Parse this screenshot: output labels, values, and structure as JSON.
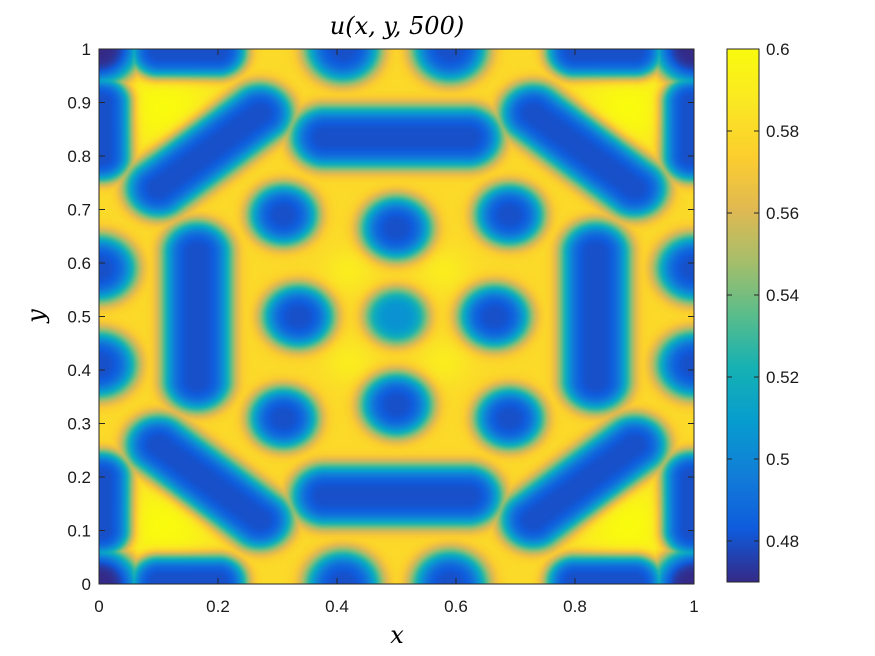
{
  "chart_data": {
    "type": "heatmap",
    "title": "u(x, y, 500)",
    "xlabel": "x",
    "ylabel": "y",
    "xlim": [
      0,
      1
    ],
    "ylim": [
      0,
      1
    ],
    "x_ticks": [
      "0",
      "0.2",
      "0.4",
      "0.6",
      "0.8",
      "1"
    ],
    "y_ticks": [
      "0",
      "0.1",
      "0.2",
      "0.3",
      "0.4",
      "0.5",
      "0.6",
      "0.7",
      "0.8",
      "0.9",
      "1"
    ],
    "colorbar": {
      "colormap": "parula",
      "range": [
        0.47,
        0.6
      ],
      "ticks": [
        "0.48",
        "0.5",
        "0.52",
        "0.54",
        "0.56",
        "0.58",
        "0.6"
      ]
    },
    "background_value": 0.58,
    "low_value": 0.48,
    "high_value": 0.6,
    "pattern": {
      "spots": [
        {
          "x": 0.5,
          "y": 0.5,
          "r": 0.055,
          "min": 0.505
        },
        {
          "x": 0.335,
          "y": 0.5,
          "r": 0.062,
          "min": 0.48
        },
        {
          "x": 0.665,
          "y": 0.5,
          "r": 0.062,
          "min": 0.48
        },
        {
          "x": 0.5,
          "y": 0.665,
          "r": 0.062,
          "min": 0.48
        },
        {
          "x": 0.5,
          "y": 0.335,
          "r": 0.062,
          "min": 0.48
        },
        {
          "x": 0.31,
          "y": 0.69,
          "r": 0.06,
          "min": 0.48
        },
        {
          "x": 0.69,
          "y": 0.69,
          "r": 0.06,
          "min": 0.48
        },
        {
          "x": 0.31,
          "y": 0.31,
          "r": 0.06,
          "min": 0.48
        },
        {
          "x": 0.69,
          "y": 0.31,
          "r": 0.06,
          "min": 0.48
        },
        {
          "x": 0.41,
          "y": 1.0,
          "r": 0.065,
          "min": 0.48
        },
        {
          "x": 0.59,
          "y": 1.0,
          "r": 0.065,
          "min": 0.48
        },
        {
          "x": 0.41,
          "y": 0.0,
          "r": 0.065,
          "min": 0.48
        },
        {
          "x": 0.59,
          "y": 0.0,
          "r": 0.065,
          "min": 0.48
        },
        {
          "x": 0.0,
          "y": 0.41,
          "r": 0.065,
          "min": 0.48
        },
        {
          "x": 0.0,
          "y": 0.59,
          "r": 0.065,
          "min": 0.48
        },
        {
          "x": 1.0,
          "y": 0.41,
          "r": 0.065,
          "min": 0.48
        },
        {
          "x": 1.0,
          "y": 0.59,
          "r": 0.065,
          "min": 0.48
        },
        {
          "x": 0.0,
          "y": 1.0,
          "r": 0.07,
          "min": 0.47
        },
        {
          "x": 1.0,
          "y": 1.0,
          "r": 0.07,
          "min": 0.47
        },
        {
          "x": 0.0,
          "y": 0.0,
          "r": 0.07,
          "min": 0.47
        },
        {
          "x": 1.0,
          "y": 0.0,
          "r": 0.07,
          "min": 0.47
        }
      ],
      "stripes": [
        {
          "x1": 0.38,
          "y1": 0.835,
          "x2": 0.62,
          "y2": 0.835,
          "r": 0.06,
          "min": 0.48
        },
        {
          "x1": 0.38,
          "y1": 0.165,
          "x2": 0.62,
          "y2": 0.165,
          "r": 0.06,
          "min": 0.48
        },
        {
          "x1": 0.165,
          "y1": 0.38,
          "x2": 0.165,
          "y2": 0.62,
          "r": 0.06,
          "min": 0.48
        },
        {
          "x1": 0.835,
          "y1": 0.38,
          "x2": 0.835,
          "y2": 0.62,
          "r": 0.06,
          "min": 0.48
        },
        {
          "x1": 0.1,
          "y1": 0.74,
          "x2": 0.27,
          "y2": 0.88,
          "r": 0.058,
          "min": 0.48
        },
        {
          "x1": 0.9,
          "y1": 0.74,
          "x2": 0.73,
          "y2": 0.88,
          "r": 0.058,
          "min": 0.48
        },
        {
          "x1": 0.1,
          "y1": 0.26,
          "x2": 0.27,
          "y2": 0.12,
          "r": 0.058,
          "min": 0.48
        },
        {
          "x1": 0.9,
          "y1": 0.26,
          "x2": 0.73,
          "y2": 0.12,
          "r": 0.058,
          "min": 0.48
        },
        {
          "x1": 0.1,
          "y1": 0.995,
          "x2": 0.2,
          "y2": 0.995,
          "r": 0.05,
          "min": 0.48
        },
        {
          "x1": 0.8,
          "y1": 0.995,
          "x2": 0.9,
          "y2": 0.995,
          "r": 0.05,
          "min": 0.48
        },
        {
          "x1": 0.1,
          "y1": 0.005,
          "x2": 0.2,
          "y2": 0.005,
          "r": 0.05,
          "min": 0.48
        },
        {
          "x1": 0.8,
          "y1": 0.005,
          "x2": 0.9,
          "y2": 0.005,
          "r": 0.05,
          "min": 0.48
        },
        {
          "x1": 0.005,
          "y1": 0.8,
          "x2": 0.005,
          "y2": 0.9,
          "r": 0.05,
          "min": 0.48
        },
        {
          "x1": 0.995,
          "y1": 0.8,
          "x2": 0.995,
          "y2": 0.9,
          "r": 0.05,
          "min": 0.48
        },
        {
          "x1": 0.005,
          "y1": 0.1,
          "x2": 0.005,
          "y2": 0.2,
          "r": 0.05,
          "min": 0.48
        },
        {
          "x1": 0.995,
          "y1": 0.1,
          "x2": 0.995,
          "y2": 0.2,
          "r": 0.05,
          "min": 0.48
        }
      ],
      "peaks": [
        {
          "x": 0.11,
          "y": 0.89,
          "r": 0.09,
          "max": 0.6
        },
        {
          "x": 0.89,
          "y": 0.89,
          "r": 0.09,
          "max": 0.6
        },
        {
          "x": 0.11,
          "y": 0.11,
          "r": 0.09,
          "max": 0.6
        },
        {
          "x": 0.89,
          "y": 0.11,
          "r": 0.09,
          "max": 0.6
        },
        {
          "x": 0.42,
          "y": 0.585,
          "r": 0.04,
          "max": 0.59
        },
        {
          "x": 0.58,
          "y": 0.585,
          "r": 0.04,
          "max": 0.59
        },
        {
          "x": 0.42,
          "y": 0.415,
          "r": 0.04,
          "max": 0.59
        },
        {
          "x": 0.58,
          "y": 0.415,
          "r": 0.04,
          "max": 0.59
        }
      ]
    }
  }
}
